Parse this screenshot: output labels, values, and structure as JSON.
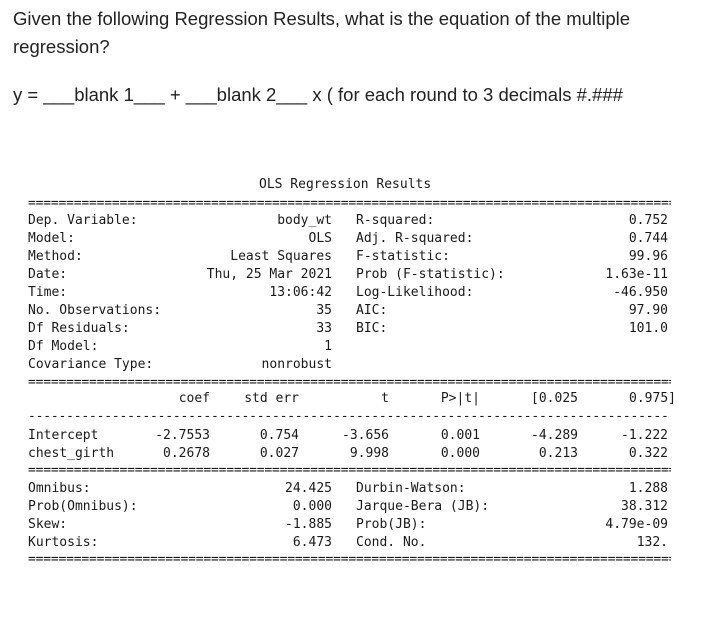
{
  "question": {
    "line1": "Given the following Regression Results, what is the equation of the multiple",
    "line2": "regression?",
    "line3": "y = ___blank 1___ + ___blank 2___  x  ( for each round to 3 decimals #.###"
  },
  "ols": {
    "title": "OLS Regression Results",
    "top_rows": [
      {
        "l": "Dep. Variable:",
        "m": "body_wt",
        "rl": "R-squared:",
        "rv": "0.752"
      },
      {
        "l": "Model:",
        "m": "OLS",
        "rl": "Adj. R-squared:",
        "rv": "0.744"
      },
      {
        "l": "Method:",
        "m": "Least Squares",
        "rl": "F-statistic:",
        "rv": "99.96"
      },
      {
        "l": "Date:",
        "m": "Thu, 25 Mar 2021",
        "rl": "Prob (F-statistic):",
        "rv": "1.63e-11"
      },
      {
        "l": "Time:",
        "m": "13:06:42",
        "rl": "Log-Likelihood:",
        "rv": "-46.950"
      },
      {
        "l": "No. Observations:",
        "m": "35",
        "rl": "AIC:",
        "rv": "97.90"
      },
      {
        "l": "Df Residuals:",
        "m": "33",
        "rl": "BIC:",
        "rv": "101.0"
      },
      {
        "l": "Df Model:",
        "m": "1",
        "rl": "",
        "rv": ""
      },
      {
        "l": "Covariance Type:",
        "m": "nonrobust",
        "rl": "",
        "rv": ""
      }
    ],
    "coef_header": [
      "coef",
      "std err",
      "t",
      "P>|t|",
      "[0.025",
      "0.975]"
    ],
    "coef_rows": [
      {
        "name": "Intercept",
        "v": [
          "-2.7553",
          "0.754",
          "-3.656",
          "0.001",
          "-4.289",
          "-1.222"
        ]
      },
      {
        "name": "chest_girth",
        "v": [
          "0.2678",
          "0.027",
          "9.998",
          "0.000",
          "0.213",
          "0.322"
        ]
      }
    ],
    "bottom_rows": [
      {
        "l": "Omnibus:",
        "m": "24.425",
        "rl": "Durbin-Watson:",
        "rv": "1.288"
      },
      {
        "l": "Prob(Omnibus):",
        "m": "0.000",
        "rl": "Jarque-Bera (JB):",
        "rv": "38.312"
      },
      {
        "l": "Skew:",
        "m": "-1.885",
        "rl": "Prob(JB):",
        "rv": "4.79e-09"
      },
      {
        "l": "Kurtosis:",
        "m": "6.473",
        "rl": "Cond. No.",
        "rv": "132."
      }
    ],
    "rule_double": "====================================================================================================",
    "rule_single": "----------------------------------------------------------------------------------------------------"
  }
}
